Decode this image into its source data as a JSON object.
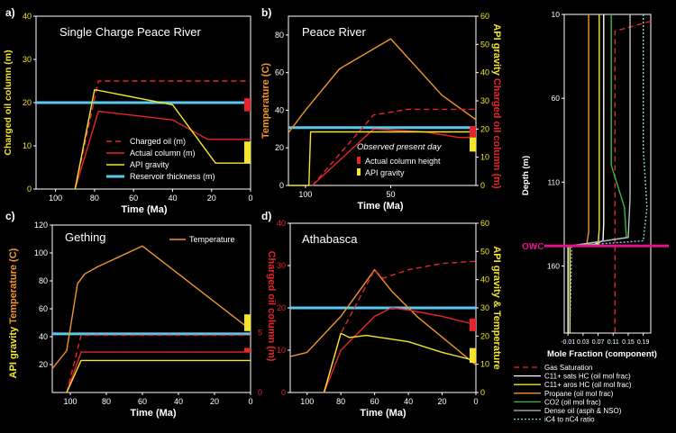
{
  "colors": {
    "yellow": "#f5e62a",
    "red": "#e8232b",
    "cyan": "#5cc8f0",
    "orange": "#f0962a",
    "magenta": "#e0128c",
    "white": "#ffffff",
    "green": "#3cb84a",
    "gray": "#bdbdbd",
    "teal": "#7fd6d6"
  },
  "chart_data": [
    {
      "id": "a",
      "type": "line",
      "panel_label": "a)",
      "title": "Single Charge Peace River",
      "xlabel": "Time (Ma)",
      "ylabel": "Charged oil column (m)",
      "xlim": [
        110,
        0
      ],
      "ylim": [
        0,
        40
      ],
      "xticks": [
        100,
        80,
        60,
        40,
        20,
        0
      ],
      "yticks": [
        0,
        10,
        20,
        30,
        40
      ],
      "legend_position": "bottom-right",
      "series": [
        {
          "name": "Charged oil (m)",
          "style": "dashed",
          "color": "#e8232b",
          "x": [
            90,
            78,
            0
          ],
          "y": [
            0,
            25,
            25
          ]
        },
        {
          "name": "Actual column (m)",
          "style": "solid",
          "color": "#e8232b",
          "x": [
            90,
            78,
            40,
            22,
            0
          ],
          "y": [
            0,
            18,
            16,
            11.5,
            11.5
          ]
        },
        {
          "name": "API gravity",
          "style": "solid",
          "color": "#f5e62a",
          "x": [
            90,
            80,
            40,
            18,
            0
          ],
          "y": [
            0,
            23,
            19.5,
            6,
            6
          ]
        },
        {
          "name": "Reservoir thickness (m)",
          "style": "thick",
          "color": "#5cc8f0",
          "x": [
            110,
            0
          ],
          "y": [
            20,
            20
          ]
        }
      ],
      "present_day_bars": [
        {
          "name": "Actual column height",
          "color": "#e8232b",
          "low": 18,
          "high": 21
        },
        {
          "name": "API gravity",
          "color": "#f5e62a",
          "low": 6,
          "high": 11
        }
      ]
    },
    {
      "id": "b",
      "type": "line",
      "panel_label": "b)",
      "title": "Peace River",
      "xlabel": "Time (Ma)",
      "ylabel_left": "Temperature (C)",
      "ylabel_right": "API gravity  Charged oil column (m)",
      "xlim": [
        110,
        0
      ],
      "ylim_left": [
        0,
        90
      ],
      "ylim_right": [
        0,
        60
      ],
      "xticks": [
        100,
        50
      ],
      "yticks_left": [
        0,
        20,
        40,
        60,
        80
      ],
      "yticks_right": [
        0,
        10,
        20,
        30,
        40,
        50,
        60
      ],
      "annotation": "Observed present day",
      "legend_position": "bottom-right",
      "series": [
        {
          "name": "Temperature",
          "style": "solid",
          "color": "#f0962a",
          "axis": "left",
          "x": [
            110,
            100,
            80,
            50,
            20,
            0
          ],
          "y": [
            28,
            40,
            62,
            78,
            48,
            35
          ]
        },
        {
          "name": "Charged oil",
          "style": "dashed",
          "color": "#e8232b",
          "axis": "right",
          "x": [
            96,
            60,
            40,
            10,
            0
          ],
          "y": [
            0,
            25,
            27,
            27,
            27
          ]
        },
        {
          "name": "Actual column",
          "style": "solid",
          "color": "#e8232b",
          "axis": "right",
          "x": [
            96,
            60,
            30,
            10,
            0
          ],
          "y": [
            0,
            20,
            19,
            17,
            17
          ]
        },
        {
          "name": "API gravity",
          "style": "solid",
          "color": "#f5e62a",
          "axis": "right",
          "x": [
            110,
            98,
            97,
            0
          ],
          "y": [
            0,
            0,
            19,
            19
          ]
        },
        {
          "name": "Reservoir thickness",
          "style": "thick",
          "color": "#5cc8f0",
          "axis": "right",
          "x": [
            110,
            0
          ],
          "y": [
            20.5,
            20.5
          ]
        }
      ],
      "present_day_bars": [
        {
          "name": "Actual column height",
          "color": "#e8232b",
          "low": 17,
          "high": 21
        },
        {
          "name": "API gravity",
          "color": "#f5e62a",
          "low": 12,
          "high": 17
        }
      ],
      "legend": [
        {
          "name": "Actual column height",
          "color": "#e8232b"
        },
        {
          "name": "API gravity",
          "color": "#f5e62a"
        }
      ]
    },
    {
      "id": "c",
      "type": "line",
      "panel_label": "c)",
      "title": "Gething",
      "xlabel": "Time (Ma)",
      "ylabel_left": "API gravity  Temperature (C)",
      "ylabel_right": "Charged oil column (m)",
      "xlim": [
        110,
        0
      ],
      "ylim_left": [
        0,
        120
      ],
      "ylim_right": [
        0,
        14
      ],
      "xticks": [
        100,
        80,
        60,
        40,
        20,
        0
      ],
      "yticks_left": [
        20,
        40,
        60,
        80,
        100,
        120
      ],
      "yticks_right": [
        0,
        5
      ],
      "legend_position": "top-right",
      "series": [
        {
          "name": "Temperature",
          "style": "solid",
          "color": "#f0962a",
          "x": [
            110,
            102,
            96,
            92,
            85,
            60,
            0
          ],
          "y": [
            17,
            30,
            78,
            85,
            90,
            105,
            45
          ]
        },
        {
          "name": "Charged oil",
          "style": "dashed",
          "color": "#e8232b",
          "x": [
            102,
            94,
            0
          ],
          "y": [
            0,
            41,
            41
          ]
        },
        {
          "name": "Actual column",
          "style": "solid",
          "color": "#e8232b",
          "x": [
            102,
            94,
            0
          ],
          "y": [
            0,
            29,
            29
          ]
        },
        {
          "name": "API gravity",
          "style": "solid",
          "color": "#f5e62a",
          "x": [
            102,
            94,
            0
          ],
          "y": [
            0,
            23,
            23
          ]
        },
        {
          "name": "Reservoir thickness",
          "style": "thick",
          "color": "#5cc8f0",
          "x": [
            110,
            0
          ],
          "y": [
            42,
            42
          ]
        }
      ],
      "present_day_bars": [
        {
          "name": "Actual column height",
          "color": "#e8232b",
          "low": 29,
          "high": 32
        },
        {
          "name": "API gravity",
          "color": "#f5e62a",
          "low": 44,
          "high": 56
        }
      ],
      "legend": [
        {
          "name": "Temperature",
          "color": "#f0962a"
        }
      ]
    },
    {
      "id": "d",
      "type": "line",
      "panel_label": "d)",
      "title": "Athabasca",
      "xlabel": "Time (Ma)",
      "ylabel_right": "API gravity & Temperature",
      "xlim": [
        110,
        0
      ],
      "ylim_left": [
        0,
        40
      ],
      "ylim_right": [
        0,
        60
      ],
      "xticks": [
        100,
        80,
        60,
        40,
        20,
        0
      ],
      "yticks_left": [
        0,
        10,
        20,
        30,
        40
      ],
      "yticks_right": [
        0,
        10,
        20,
        30,
        40,
        50,
        60
      ],
      "series": [
        {
          "name": "Temperature",
          "style": "solid",
          "color": "#f0962a",
          "x": [
            110,
            100,
            80,
            60,
            50,
            35,
            0
          ],
          "y": [
            8.5,
            9.5,
            18,
            29,
            24,
            18,
            6.5
          ]
        },
        {
          "name": "Charged oil",
          "style": "dashed",
          "color": "#e8232b",
          "x": [
            90,
            80,
            60,
            55,
            40,
            20,
            0
          ],
          "y": [
            0,
            14,
            29,
            27,
            29,
            30.5,
            31
          ]
        },
        {
          "name": "Actual column",
          "style": "solid",
          "color": "#e8232b",
          "x": [
            90,
            80,
            60,
            50,
            40,
            20,
            0
          ],
          "y": [
            0,
            10,
            18,
            20,
            19.5,
            18,
            16
          ]
        },
        {
          "name": "API gravity",
          "style": "solid",
          "color": "#f5e62a",
          "x": [
            90,
            80,
            75,
            65,
            40,
            20,
            0
          ],
          "y": [
            0,
            14,
            13,
            13.5,
            12,
            9.5,
            7.5
          ]
        },
        {
          "name": "Reservoir thickness",
          "style": "thick",
          "color": "#5cc8f0",
          "x": [
            110,
            0
          ],
          "y": [
            20,
            20
          ]
        }
      ],
      "present_day_bars": [
        {
          "name": "Actual column height",
          "color": "#e8232b",
          "low": 14.5,
          "high": 17.5
        },
        {
          "name": "API gravity",
          "color": "#f5e62a",
          "low": 7,
          "high": 10.5
        }
      ]
    },
    {
      "id": "e",
      "type": "line",
      "xlabel": "Mole Fraction (component)",
      "ylabel": "Depth (m)",
      "xlim": [
        -0.02,
        0.21
      ],
      "ylim": [
        10,
        200
      ],
      "xticks": [
        -0.01,
        0.03,
        0.07,
        0.11,
        0.15,
        0.19
      ],
      "yticks": [
        10,
        60,
        110,
        160
      ],
      "owc_label": "OWC",
      "owc_depth": 148,
      "legend_position": "bottom",
      "series": [
        {
          "name": "Gas Saturation",
          "style": "dashed",
          "color": "#e8232b",
          "x": [
            0.21,
            0.115,
            0.115
          ],
          "y": [
            14,
            20,
            200
          ]
        },
        {
          "name": "C11+ sats HC (oil mol frac)",
          "style": "solid",
          "color": "#ffffff",
          "x": [
            0.085,
            0.085,
            0.083,
            0.05,
            -0.01,
            -0.01
          ],
          "y": [
            10,
            135,
            145,
            148,
            148,
            200
          ]
        },
        {
          "name": "C11+ aros HC (oil mol frac)",
          "style": "solid",
          "color": "#f5e62a",
          "x": [
            0.073,
            0.073,
            0.07,
            -0.005,
            -0.005
          ],
          "y": [
            10,
            138,
            147,
            148,
            200
          ]
        },
        {
          "name": "Propane (oil mol frac)",
          "style": "solid",
          "color": "#f0962a",
          "x": [
            0.045,
            0.045,
            0.04,
            -0.005
          ],
          "y": [
            10,
            140,
            147,
            148
          ]
        },
        {
          "name": "CO2 (oil mol frac)",
          "style": "solid",
          "color": "#3cb84a",
          "x": [
            0.105,
            0.105,
            0.14,
            0.145,
            0.005
          ],
          "y": [
            10,
            100,
            125,
            143,
            148
          ]
        },
        {
          "name": "Dense oil (asph & NSO)",
          "style": "solid",
          "color": "#bdbdbd",
          "x": [
            0.155,
            0.155,
            0.15,
            -0.005
          ],
          "y": [
            10,
            120,
            143,
            148
          ]
        },
        {
          "name": "iC4 to nC4 ratio",
          "style": "dotted",
          "color": "#7fd6d6",
          "x": [
            0.19,
            0.19,
            0.2,
            0.19,
            0.0,
            -0.005
          ],
          "y": [
            10,
            90,
            125,
            145,
            148,
            200
          ]
        }
      ]
    }
  ]
}
